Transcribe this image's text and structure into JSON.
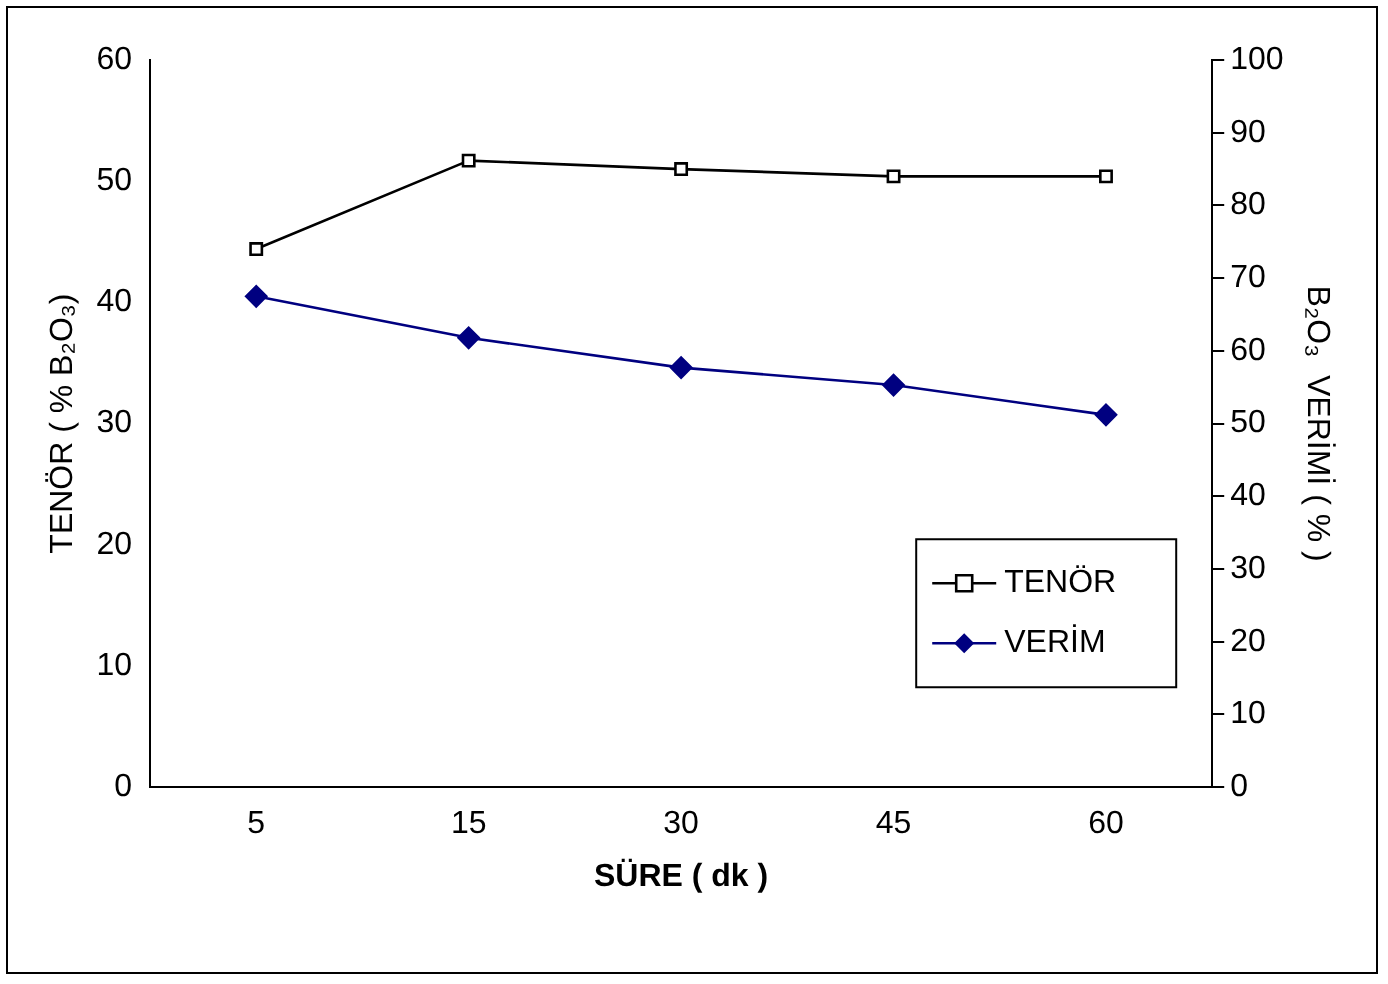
{
  "chart_data": {
    "type": "line",
    "xlabel": "SÜRE ( dk )",
    "ylabel": "TENÖR ( % B₂O₃)",
    "y2label": "B₂O₃  VERİMİ ( % )",
    "categories": [
      "5",
      "15",
      "30",
      "45",
      "60"
    ],
    "series": [
      {
        "name": "TENÖR",
        "color": "#000000",
        "marker": "square",
        "values": [
          44.4,
          51.7,
          51.0,
          50.4,
          50.4
        ]
      },
      {
        "name": "VERİM",
        "color": "#000080",
        "marker": "diamond",
        "axis": "y2",
        "values": [
          67.5,
          61.8,
          57.7,
          55.3,
          51.2
        ]
      }
    ],
    "ylim": [
      0,
      60
    ],
    "yticks": [
      0,
      10,
      20,
      30,
      40,
      50,
      60
    ],
    "y2lim": [
      0,
      100
    ],
    "y2ticks": [
      0,
      10,
      20,
      30,
      40,
      50,
      60,
      70,
      80,
      90,
      100
    ],
    "grid": false,
    "legend": "bottom right",
    "line_style": "solid"
  }
}
